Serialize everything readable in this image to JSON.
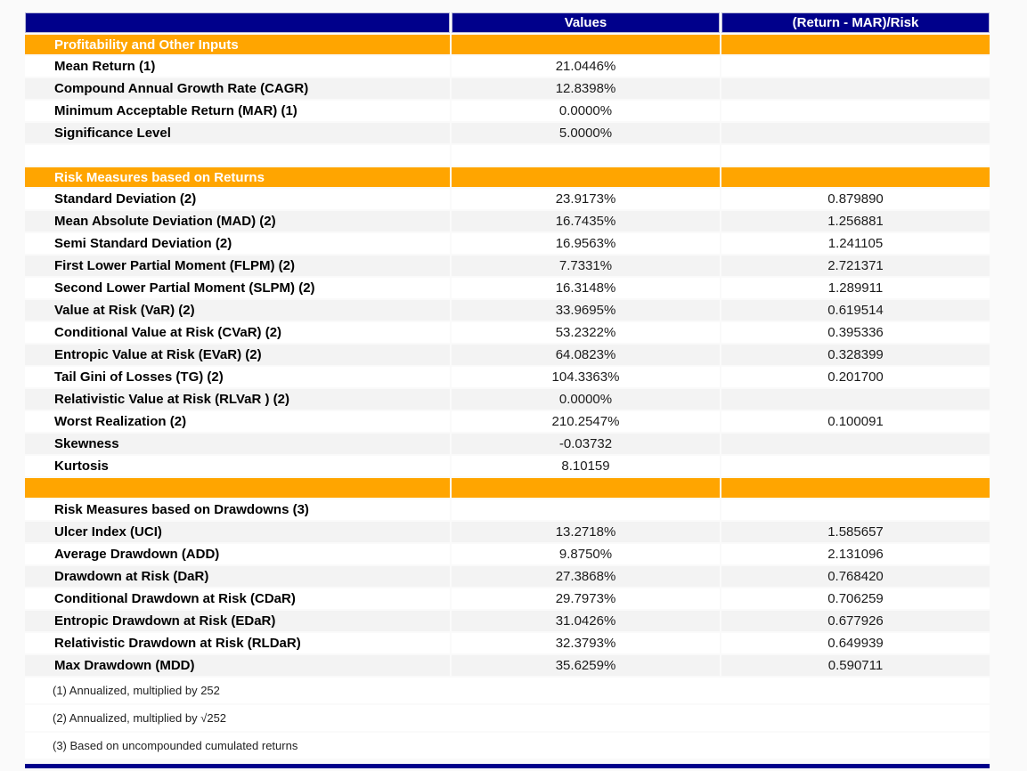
{
  "colors": {
    "header_bg": "#00008B",
    "header_text": "#FFFFFF",
    "section_bg": "#FFA500",
    "stripe_bg": "#F3F3F3",
    "page_bg": "#FAFAFA"
  },
  "table": {
    "columns": [
      {
        "label": ""
      },
      {
        "label": "Values"
      },
      {
        "label": "(Return - MAR)/Risk"
      }
    ],
    "rows": [
      {
        "type": "section",
        "label": "Profitability and Other Inputs"
      },
      {
        "type": "data",
        "label": "Mean Return (1)",
        "value": "21.0446%",
        "ratio": ""
      },
      {
        "type": "data",
        "label": "Compound Annual Growth Rate (CAGR)",
        "value": "12.8398%",
        "ratio": ""
      },
      {
        "type": "data",
        "label": "Minimum Acceptable Return (MAR) (1)",
        "value": "0.0000%",
        "ratio": ""
      },
      {
        "type": "data",
        "label": "Significance Level",
        "value": "5.0000%",
        "ratio": ""
      },
      {
        "type": "spacer"
      },
      {
        "type": "section",
        "label": "Risk Measures based on Returns"
      },
      {
        "type": "data",
        "label": "Standard Deviation (2)",
        "value": "23.9173%",
        "ratio": "0.879890"
      },
      {
        "type": "data",
        "label": "Mean Absolute Deviation (MAD) (2)",
        "value": "16.7435%",
        "ratio": "1.256881"
      },
      {
        "type": "data",
        "label": "Semi Standard Deviation (2)",
        "value": "16.9563%",
        "ratio": "1.241105"
      },
      {
        "type": "data",
        "label": "First Lower Partial Moment (FLPM) (2)",
        "value": "7.7331%",
        "ratio": "2.721371"
      },
      {
        "type": "data",
        "label": "Second Lower Partial Moment (SLPM) (2)",
        "value": "16.3148%",
        "ratio": "1.289911"
      },
      {
        "type": "data",
        "label": "Value at Risk (VaR) (2)",
        "value": "33.9695%",
        "ratio": "0.619514"
      },
      {
        "type": "data",
        "label": "Conditional Value at Risk (CVaR) (2)",
        "value": "53.2322%",
        "ratio": "0.395336"
      },
      {
        "type": "data",
        "label": "Entropic Value at Risk (EVaR) (2)",
        "value": "64.0823%",
        "ratio": "0.328399"
      },
      {
        "type": "data",
        "label": "Tail Gini of Losses (TG) (2)",
        "value": "104.3363%",
        "ratio": "0.201700"
      },
      {
        "type": "data",
        "label": "Relativistic Value at Risk (RLVaR ) (2)",
        "value": "0.0000%",
        "ratio": ""
      },
      {
        "type": "data",
        "label": "Worst Realization (2)",
        "value": "210.2547%",
        "ratio": "0.100091"
      },
      {
        "type": "data",
        "label": "Skewness",
        "value": "-0.03732",
        "ratio": ""
      },
      {
        "type": "data",
        "label": "Kurtosis",
        "value": "8.10159",
        "ratio": ""
      },
      {
        "type": "section",
        "label": ""
      },
      {
        "type": "subheader",
        "label": "Risk Measures based on Drawdowns (3)",
        "value": "",
        "ratio": ""
      },
      {
        "type": "data",
        "label": "Ulcer Index (UCI)",
        "value": "13.2718%",
        "ratio": "1.585657"
      },
      {
        "type": "data",
        "label": "Average Drawdown (ADD)",
        "value": "9.8750%",
        "ratio": "2.131096"
      },
      {
        "type": "data",
        "label": "Drawdown at Risk (DaR)",
        "value": "27.3868%",
        "ratio": "0.768420"
      },
      {
        "type": "data",
        "label": "Conditional Drawdown at Risk (CDaR)",
        "value": "29.7973%",
        "ratio": "0.706259"
      },
      {
        "type": "data",
        "label": "Entropic Drawdown at Risk (EDaR)",
        "value": "31.0426%",
        "ratio": "0.677926"
      },
      {
        "type": "data",
        "label": "Relativistic Drawdown at Risk (RLDaR)",
        "value": "32.3793%",
        "ratio": "0.649939"
      },
      {
        "type": "data",
        "label": "Max Drawdown (MDD)",
        "value": "35.6259%",
        "ratio": "0.590711"
      },
      {
        "type": "footnote",
        "label": "(1) Annualized, multiplied by 252"
      },
      {
        "type": "footnote",
        "label": "(2) Annualized, multiplied by √252"
      },
      {
        "type": "footnote",
        "label": "(3) Based on uncompounded cumulated returns"
      }
    ]
  }
}
